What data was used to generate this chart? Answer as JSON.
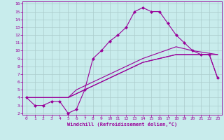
{
  "background_color": "#c8ecec",
  "grid_color": "#aacccc",
  "line_color": "#990099",
  "xlabel": "Windchill (Refroidissement éolien,°C)",
  "xlim": [
    -0.5,
    23.5
  ],
  "ylim": [
    1.8,
    16.3
  ],
  "xticks": [
    0,
    1,
    2,
    3,
    4,
    5,
    6,
    7,
    8,
    9,
    10,
    11,
    12,
    13,
    14,
    15,
    16,
    17,
    18,
    19,
    20,
    21,
    22,
    23
  ],
  "yticks": [
    2,
    3,
    4,
    5,
    6,
    7,
    8,
    9,
    10,
    11,
    12,
    13,
    14,
    15,
    16
  ],
  "line1_x": [
    0,
    1,
    2,
    3,
    4,
    5,
    6,
    7,
    8,
    9,
    10,
    11,
    12,
    13,
    14,
    15,
    16,
    17,
    18,
    19,
    20,
    21,
    22,
    23
  ],
  "line1_y": [
    4.0,
    3.0,
    3.0,
    3.5,
    3.5,
    2.0,
    2.5,
    5.0,
    9.0,
    10.0,
    11.2,
    12.0,
    13.0,
    15.0,
    15.5,
    15.0,
    15.0,
    13.5,
    12.0,
    11.0,
    10.0,
    9.5,
    9.5,
    6.5
  ],
  "line2_x": [
    0,
    5,
    6,
    10,
    14,
    18,
    21,
    22,
    23
  ],
  "line2_y": [
    4.0,
    4.0,
    4.5,
    6.5,
    8.5,
    9.5,
    9.5,
    9.5,
    6.5
  ],
  "line3_x": [
    0,
    5,
    6,
    10,
    14,
    18,
    21,
    22,
    23
  ],
  "line3_y": [
    4.0,
    4.0,
    4.5,
    6.5,
    8.5,
    9.5,
    9.5,
    9.5,
    9.5
  ],
  "line4_x": [
    0,
    5,
    6,
    10,
    14,
    18,
    20,
    23
  ],
  "line4_y": [
    4.0,
    4.0,
    5.0,
    7.0,
    9.0,
    10.5,
    10.0,
    9.5
  ]
}
